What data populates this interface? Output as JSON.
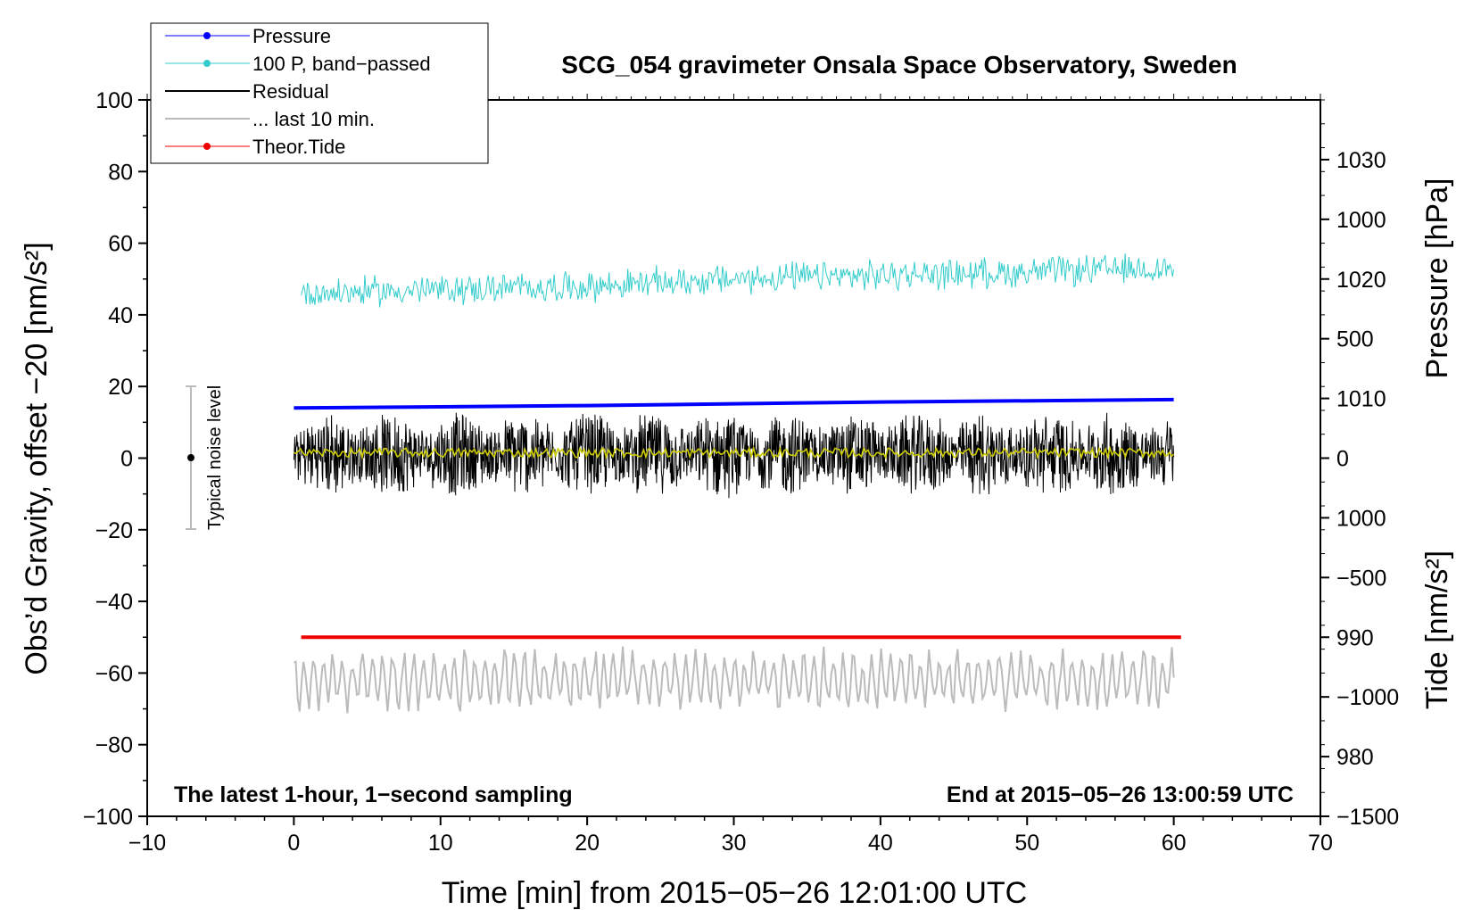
{
  "chart_data": {
    "type": "line",
    "title": "SCG_054 gravimeter Onsala Space Observatory, Sweden",
    "xlabel": "Time [min] from 2015−05−26 12:01:00 UTC",
    "ylabel_left": "Obs’d Gravity, offset −20 [nm/s²]",
    "ylabel_pressure": "Pressure [hPa]",
    "ylabel_tide": "Tide [nm/s²]",
    "xlim": [
      -10,
      70
    ],
    "ylim": [
      -100,
      100
    ],
    "pressure_range": [
      975,
      1035
    ],
    "tide_range": [
      -1500,
      1500
    ],
    "x_ticks": [
      "−10",
      "0",
      "10",
      "20",
      "30",
      "40",
      "50",
      "60",
      "70"
    ],
    "y_ticks": [
      "100",
      "80",
      "60",
      "40",
      "20",
      "0",
      "−20",
      "−40",
      "−60",
      "−80",
      "−100"
    ],
    "pressure_ticks": [
      "1030",
      "1020",
      "1010",
      "1000",
      "990",
      "980"
    ],
    "tide_ticks": [
      "1000",
      "500",
      "0",
      "−500",
      "−1000",
      "−1500"
    ],
    "grid": false,
    "legend_placement": "top-left",
    "annotation_left": "The latest 1-hour, 1−second sampling",
    "annotation_right": "End at 2015−05−26 13:00:59 UTC",
    "noise_label": "Typical noise level",
    "noise_bar": {
      "x": -7,
      "center": 0,
      "low": -20,
      "high": 20
    },
    "series": [
      {
        "name": "Pressure",
        "axis": "pressure",
        "color": "#0000ff",
        "x": [
          0,
          20,
          40,
          60
        ],
        "values": [
          1009.2,
          1009.4,
          1009.7,
          1009.9
        ]
      },
      {
        "name": "100 P, band−passed",
        "axis": "left",
        "color": "#33cccc",
        "x": [
          0,
          10,
          20,
          30,
          40,
          50,
          60
        ],
        "values": [
          46,
          47,
          48,
          50,
          51,
          52,
          53
        ]
      },
      {
        "name": "Residual",
        "axis": "left",
        "color": "#000000",
        "x": [
          0,
          60
        ],
        "values": [
          1,
          1
        ],
        "noise_amplitude": 9
      },
      {
        "name": "... last 10 min.",
        "axis": "left",
        "color": "#bbbbbb",
        "x": [
          0,
          60
        ],
        "values": [
          -62,
          -62
        ],
        "noise_amplitude": 8
      },
      {
        "name": "Theor.Tide",
        "axis": "left",
        "color": "#ee0000",
        "x": [
          0.5,
          20,
          43,
          60.5
        ],
        "values": [
          -50,
          -50,
          -50,
          -50
        ]
      }
    ],
    "overlay_series": {
      "color": "#cccc00",
      "x": [
        0,
        60
      ],
      "values": [
        1.5,
        1.5
      ]
    }
  }
}
